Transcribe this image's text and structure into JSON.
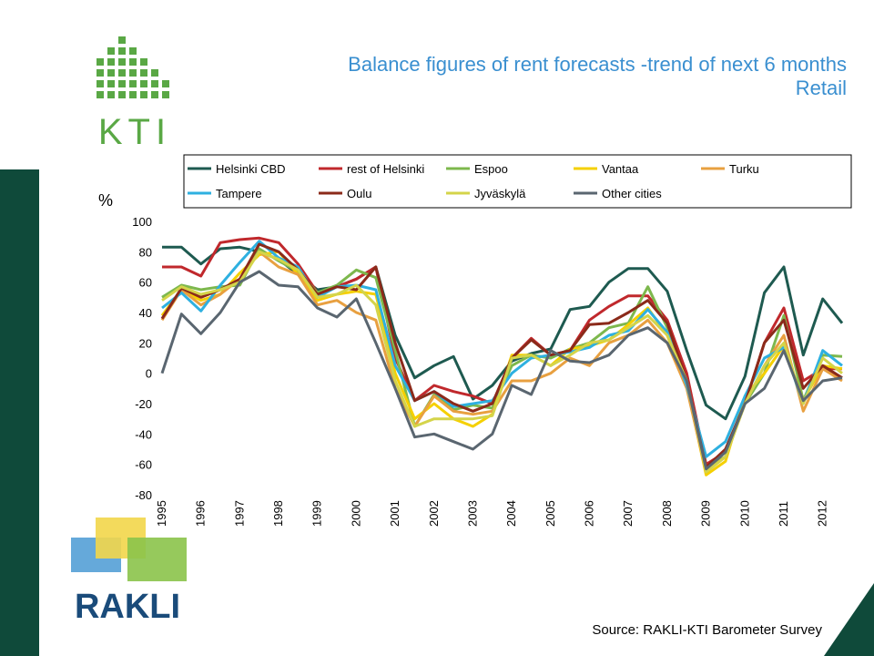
{
  "header": {
    "title": "Balance figures of rent forecasts -trend of next 6 months",
    "subtitle": "Retail"
  },
  "logos": {
    "top": "KTI",
    "bottom": "RAKLI"
  },
  "source": "Source: RAKLI-KTI Barometer Survey",
  "chart_data": {
    "type": "line",
    "y_label": "%",
    "categories": [
      "1995",
      null,
      "1996",
      null,
      "1997",
      null,
      "1998",
      null,
      "1999",
      null,
      "2000",
      null,
      "2001",
      null,
      "2002",
      null,
      "2003",
      null,
      "2004",
      null,
      "2005",
      null,
      "2006",
      null,
      "2007",
      null,
      "2008",
      null,
      "2009",
      null,
      "2010",
      null,
      "2011",
      null,
      "2012",
      null
    ],
    "ylim": [
      -80,
      100
    ],
    "yticks": [
      -80,
      -60,
      -40,
      -20,
      0,
      20,
      40,
      60,
      80,
      100
    ],
    "grid": false,
    "legend": "top",
    "series": [
      {
        "name": "Helsinki CBD",
        "color": "#1e5a50",
        "values": [
          83,
          83,
          72,
          82,
          83,
          80,
          75,
          65,
          55,
          57,
          62,
          70,
          25,
          -3,
          5,
          11,
          -17,
          -8,
          8,
          13,
          16,
          42,
          44,
          60,
          69,
          69,
          54,
          15,
          -21,
          -30,
          -2,
          53,
          70,
          12,
          49,
          33
        ]
      },
      {
        "name": "rest of Helsinki",
        "color": "#c0282c",
        "values": [
          70,
          70,
          64,
          86,
          88,
          89,
          86,
          72,
          53,
          57,
          62,
          70,
          10,
          -18,
          -8,
          -12,
          -15,
          -20,
          10,
          23,
          12,
          15,
          35,
          44,
          51,
          51,
          35,
          0,
          -60,
          -52,
          -20,
          20,
          43,
          -5,
          3,
          3
        ]
      },
      {
        "name": "Espoo",
        "color": "#7db84d",
        "values": [
          50,
          58,
          55,
          57,
          58,
          82,
          74,
          67,
          53,
          58,
          68,
          63,
          15,
          -35,
          -14,
          -24,
          -21,
          -23,
          5,
          12,
          10,
          16,
          20,
          30,
          33,
          57,
          30,
          -5,
          -62,
          -55,
          -20,
          0,
          38,
          -18,
          12,
          11
        ]
      },
      {
        "name": "Vantaa",
        "color": "#f5d000",
        "values": [
          38,
          55,
          48,
          52,
          66,
          78,
          80,
          65,
          48,
          52,
          54,
          52,
          0,
          -30,
          -20,
          -30,
          -35,
          -27,
          12,
          12,
          5,
          16,
          18,
          22,
          32,
          43,
          25,
          -8,
          -67,
          -58,
          -15,
          0,
          18,
          -18,
          5,
          3
        ]
      },
      {
        "name": "Turku",
        "color": "#e8a040",
        "values": [
          35,
          55,
          45,
          52,
          62,
          80,
          70,
          65,
          45,
          48,
          40,
          35,
          -10,
          -35,
          -15,
          -25,
          -27,
          -25,
          -5,
          -5,
          0,
          10,
          5,
          20,
          25,
          35,
          20,
          -10,
          -65,
          -55,
          -20,
          5,
          25,
          -25,
          3,
          -5
        ]
      },
      {
        "name": "Tampere",
        "color": "#2eb0e0",
        "values": [
          43,
          53,
          41,
          58,
          73,
          87,
          76,
          70,
          50,
          57,
          58,
          55,
          5,
          -18,
          -12,
          -22,
          -20,
          -18,
          0,
          10,
          12,
          14,
          17,
          25,
          28,
          42,
          27,
          -8,
          -55,
          -45,
          -15,
          10,
          17,
          -20,
          15,
          5
        ]
      },
      {
        "name": "Oulu",
        "color": "#8b2a1a",
        "values": [
          36,
          56,
          50,
          55,
          62,
          85,
          80,
          68,
          52,
          57,
          55,
          70,
          20,
          -18,
          -12,
          -20,
          -25,
          -20,
          10,
          22,
          12,
          15,
          32,
          33,
          40,
          48,
          33,
          -5,
          -62,
          -50,
          -20,
          20,
          35,
          -10,
          5,
          -3
        ]
      },
      {
        "name": "Jyväskylä",
        "color": "#d4d44a",
        "values": [
          48,
          57,
          52,
          55,
          60,
          80,
          75,
          68,
          50,
          52,
          58,
          45,
          -5,
          -35,
          -30,
          -30,
          -30,
          -28,
          10,
          12,
          5,
          12,
          20,
          22,
          30,
          38,
          25,
          -5,
          -65,
          -55,
          -20,
          5,
          20,
          -20,
          10,
          0
        ]
      },
      {
        "name": "Other cities",
        "color": "#5a6670",
        "values": [
          0,
          39,
          26,
          40,
          60,
          67,
          58,
          57,
          43,
          37,
          49,
          20,
          -10,
          -42,
          -40,
          -45,
          -50,
          -40,
          -8,
          -14,
          15,
          8,
          7,
          12,
          25,
          30,
          20,
          -5,
          -63,
          -52,
          -20,
          -10,
          15,
          -18,
          -5,
          -3
        ]
      }
    ]
  }
}
